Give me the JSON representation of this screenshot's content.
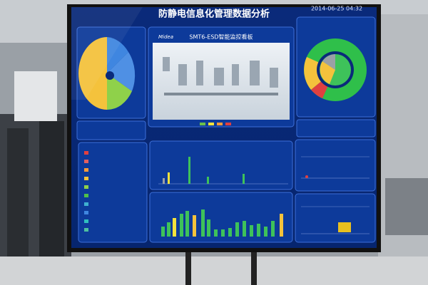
{
  "header": {
    "title": "防静电信息化管理数据分析",
    "datetime": "2014-06-25 04:32"
  },
  "center_panel": {
    "logo": "Midea",
    "title": "SMT6-ESD智能监控看板"
  }
}
